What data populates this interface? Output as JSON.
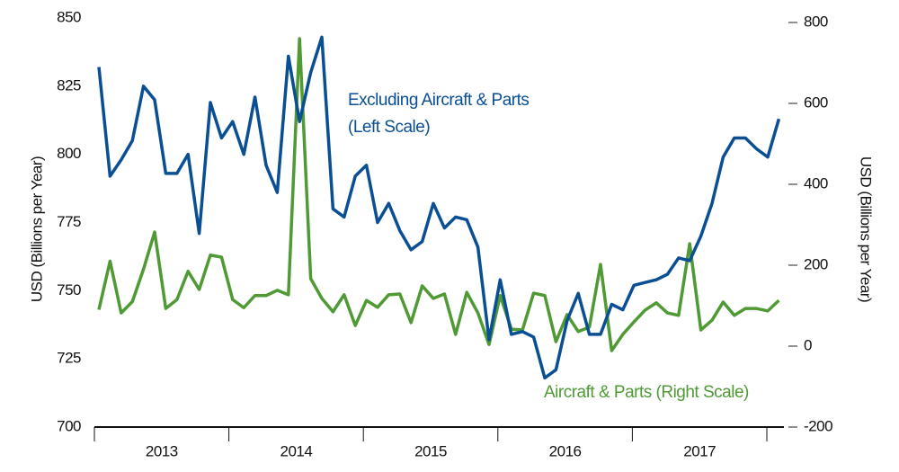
{
  "chart_data": {
    "type": "line",
    "y_label": "USD (Billions per Year)",
    "y2_label": "USD (Billions per Year)",
    "annotations": [
      "Excluding Aircraft & Parts",
      "(Left Scale)",
      "Aircraft & Parts (Right Scale)"
    ],
    "categories": [
      null,
      null,
      null,
      null,
      null,
      null,
      null,
      null,
      null,
      null,
      null,
      null,
      null,
      null,
      null,
      null,
      null,
      null,
      null,
      null,
      null,
      null,
      null,
      null,
      null,
      null,
      null,
      null,
      null,
      null,
      null,
      null,
      null,
      null,
      null,
      null,
      null,
      null,
      null,
      null,
      null,
      null,
      null,
      null,
      null,
      null,
      null,
      null,
      null,
      null,
      null,
      null,
      null,
      null,
      null,
      null,
      null,
      null,
      null,
      null,
      null,
      null
    ],
    "year_labels": [
      "2013",
      "2014",
      "2015",
      "2016",
      "2017"
    ],
    "series": [
      {
        "name": "Excluding Aircraft & Parts",
        "color": "#0a4f94",
        "axis": "y",
        "values": [
          832,
          792,
          798,
          805,
          825,
          820,
          793,
          793,
          800,
          771,
          819,
          806,
          812,
          800,
          821,
          796,
          786,
          836,
          812,
          830,
          843,
          780,
          777,
          792,
          796,
          775,
          782,
          772,
          765,
          768,
          782,
          773,
          777,
          776,
          766,
          732,
          754,
          734,
          735,
          733,
          718,
          721,
          739,
          749,
          734,
          734,
          745,
          743,
          752,
          753,
          754,
          756,
          762,
          761,
          770,
          782,
          799,
          806,
          806,
          802,
          799,
          813
        ]
      },
      {
        "name": "Aircraft & Parts",
        "color": "#4f9a35",
        "axis": "y2",
        "values": [
          90,
          210,
          82,
          110,
          190,
          282,
          93,
          115,
          185,
          140,
          225,
          220,
          115,
          95,
          125,
          125,
          138,
          127,
          760,
          167,
          118,
          85,
          127,
          51,
          113,
          96,
          127,
          129,
          58,
          149,
          118,
          129,
          29,
          133,
          82,
          4,
          125,
          42,
          40,
          131,
          125,
          11,
          78,
          36,
          47,
          202,
          -11,
          29,
          60,
          89,
          107,
          82,
          76,
          253,
          40,
          64,
          109,
          76,
          93,
          93,
          87,
          113
        ]
      }
    ],
    "ylim": [
      700,
      850
    ],
    "yticks": [
      700,
      725,
      750,
      775,
      800,
      825,
      850
    ],
    "y2lim": [
      -200,
      800
    ],
    "y2ticks": [
      -200,
      0,
      200,
      400,
      600,
      800
    ],
    "grid": false
  }
}
